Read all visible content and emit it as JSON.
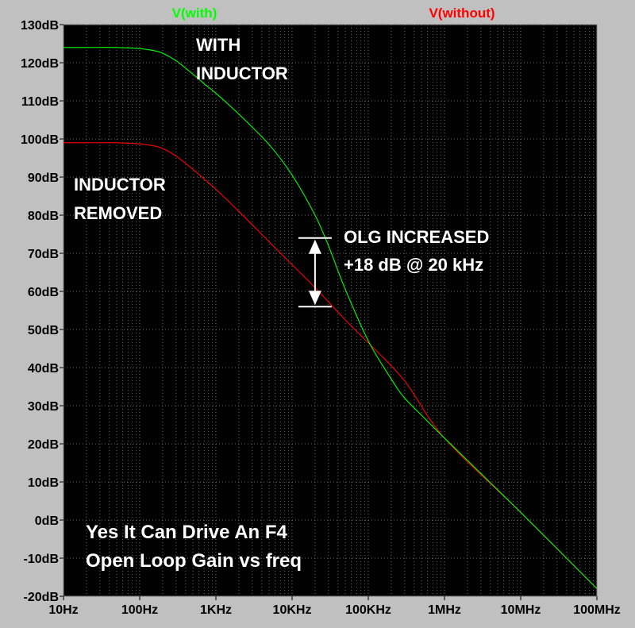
{
  "chart_data": {
    "type": "line",
    "x_scale": "log",
    "xlim_hz": [
      10,
      100000000
    ],
    "ylim_db": [
      -20,
      130
    ],
    "grid": true,
    "x_tick_labels": [
      "10Hz",
      "100Hz",
      "1KHz",
      "10KHz",
      "100KHz",
      "1MHz",
      "10MHz",
      "100MHz"
    ],
    "x_tick_values": [
      10,
      100,
      1000,
      10000,
      100000,
      1000000,
      10000000,
      100000000
    ],
    "y_tick_labels": [
      "130dB",
      "120dB",
      "110dB",
      "100dB",
      "90dB",
      "80dB",
      "70dB",
      "60dB",
      "50dB",
      "40dB",
      "30dB",
      "20dB",
      "10dB",
      "0dB",
      "-10dB",
      "-20dB"
    ],
    "y_tick_values": [
      130,
      120,
      110,
      100,
      90,
      80,
      70,
      60,
      50,
      40,
      30,
      20,
      10,
      0,
      -10,
      -20
    ],
    "legend_placement": "top",
    "series": [
      {
        "name": "V(with)",
        "color": "#00ff00",
        "x": [
          10,
          20,
          50,
          100,
          150,
          200,
          300,
          500,
          700,
          1000,
          2000,
          5000,
          10000,
          20000,
          30000,
          50000,
          100000,
          200000,
          300000,
          500000,
          1000000,
          10000000,
          100000000
        ],
        "y": [
          124,
          124,
          124,
          123.7,
          123.2,
          122.5,
          120.5,
          117,
          114.5,
          112,
          106.5,
          98.5,
          90.5,
          80,
          72,
          60.5,
          47,
          37,
          32,
          27.5,
          21.5,
          2,
          -18
        ]
      },
      {
        "name": "V(without)",
        "color": "#ff0000",
        "x": [
          10,
          20,
          50,
          100,
          150,
          200,
          300,
          500,
          700,
          1000,
          2000,
          5000,
          10000,
          20000,
          50000,
          100000,
          300000,
          1000000,
          10000000,
          100000000
        ],
        "y": [
          99,
          99,
          99,
          98.7,
          98.2,
          97.5,
          95.5,
          92,
          89.5,
          86.8,
          81,
          73,
          67,
          61,
          52.5,
          46.5,
          36.5,
          21.5,
          2,
          -18
        ]
      }
    ],
    "annotations": {
      "with_label": [
        "WITH",
        "INDUCTOR"
      ],
      "without_label": [
        "INDUCTOR",
        "REMOVED"
      ],
      "olg_label": [
        "OLG INCREASED",
        "+18 dB @ 20 kHz"
      ],
      "arrow_freq_hz": 20000,
      "arrow_from_db": 56,
      "arrow_to_db": 74
    },
    "caption": [
      "Yes It Can Drive An F4",
      "Open Loop Gain  vs  freq"
    ]
  }
}
